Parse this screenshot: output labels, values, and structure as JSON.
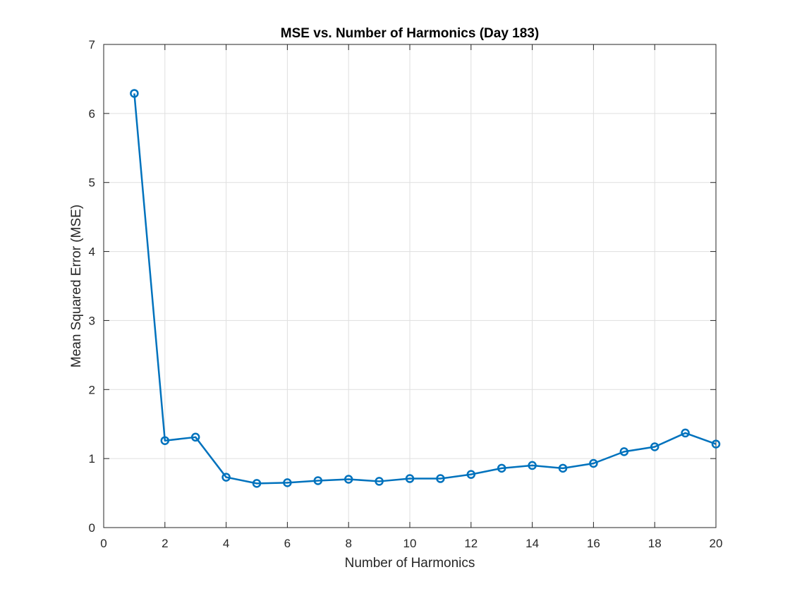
{
  "chart_data": {
    "type": "line",
    "title": "MSE vs. Number of Harmonics (Day 183)",
    "xlabel": "Number of Harmonics",
    "ylabel": "Mean Squared Error (MSE)",
    "xlim": [
      0,
      20
    ],
    "ylim": [
      0,
      7
    ],
    "xticks": [
      0,
      2,
      4,
      6,
      8,
      10,
      12,
      14,
      16,
      18,
      20
    ],
    "yticks": [
      0,
      1,
      2,
      3,
      4,
      5,
      6,
      7
    ],
    "grid": true,
    "marker": "circle",
    "line_color": "#0072BD",
    "axis_color": "#262626",
    "grid_color": "#dfdfdf",
    "series": [
      {
        "x": [
          1,
          2,
          3,
          4,
          5,
          6,
          7,
          8,
          9,
          10,
          11,
          12,
          13,
          14,
          15,
          16,
          17,
          18,
          19,
          20
        ],
        "values": [
          6.29,
          1.26,
          1.31,
          0.73,
          0.64,
          0.65,
          0.68,
          0.7,
          0.67,
          0.71,
          0.71,
          0.77,
          0.86,
          0.9,
          0.86,
          0.93,
          1.1,
          1.17,
          1.37,
          1.21
        ]
      }
    ]
  }
}
